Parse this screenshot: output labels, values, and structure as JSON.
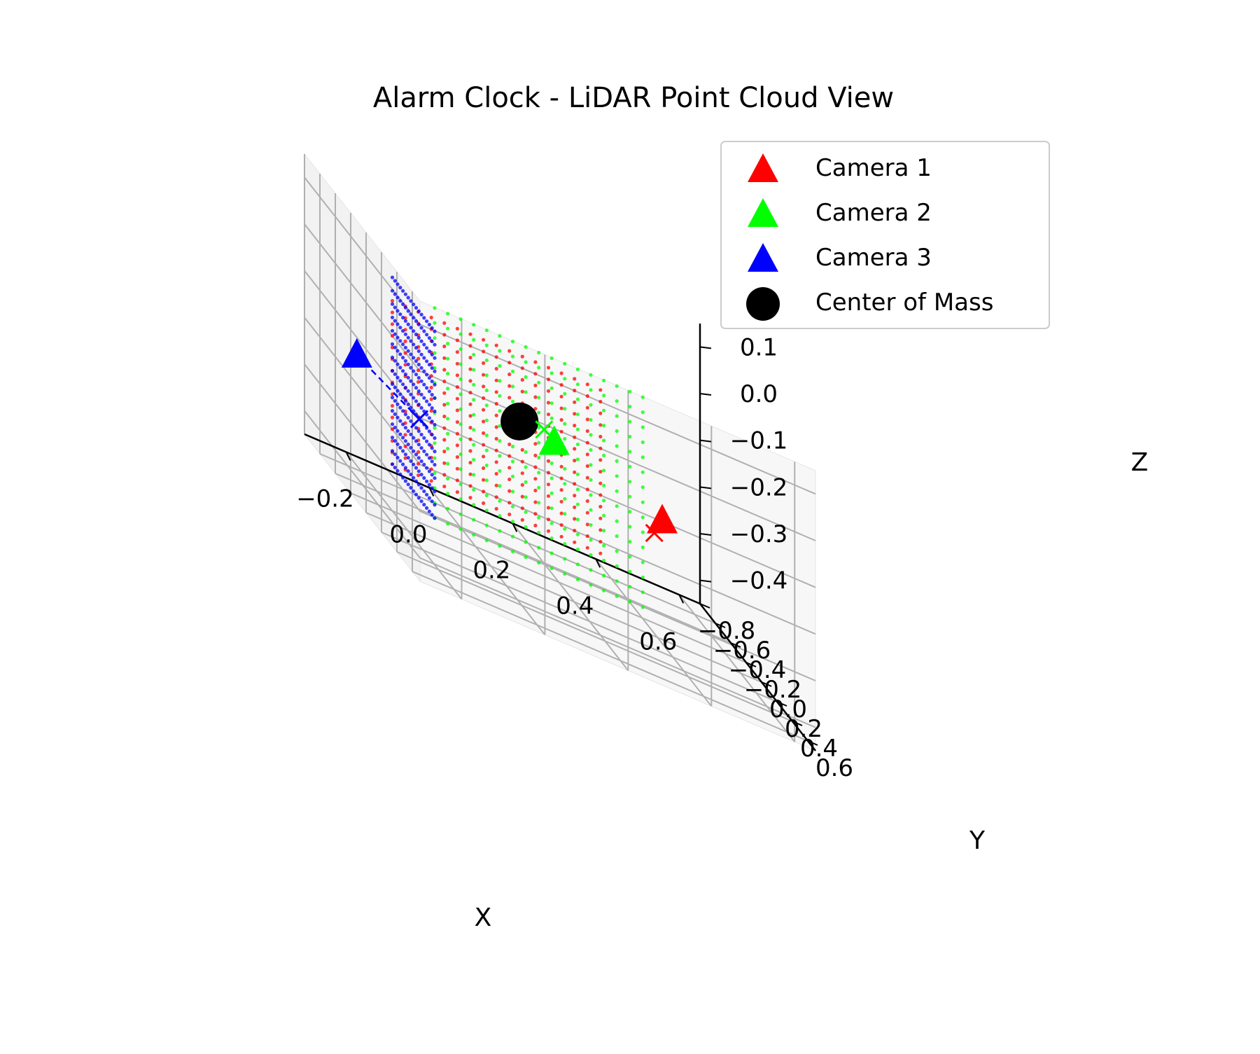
{
  "chart_data": {
    "type": "scatter",
    "title": "Alarm Clock - LiDAR Point Cloud View",
    "xlabel": "X",
    "ylabel": "Y",
    "zlabel": "Z",
    "xlim": [
      -0.3,
      0.65
    ],
    "ylim": [
      -0.8,
      0.7
    ],
    "zlim": [
      -0.45,
      0.15
    ],
    "x_ticks": [
      "−0.2",
      "0.0",
      "0.2",
      "0.4",
      "0.6"
    ],
    "y_ticks": [
      "−0.8",
      "−0.6",
      "−0.4",
      "−0.2",
      "0.0",
      "0.2",
      "0.4",
      "0.6"
    ],
    "z_ticks": [
      "−0.4",
      "−0.3",
      "−0.2",
      "−0.1",
      "0.0",
      "0.1"
    ],
    "grid": true,
    "legend_position": "top-right",
    "legend": [
      {
        "label": "Camera 1",
        "marker": "triangle",
        "color": "#ff0000"
      },
      {
        "label": "Camera 2",
        "marker": "triangle",
        "color": "#00ff00"
      },
      {
        "label": "Camera 3",
        "marker": "triangle",
        "color": "#0000ff"
      },
      {
        "label": "Center of Mass",
        "marker": "circle",
        "color": "#000000"
      }
    ],
    "center_of_mass": {
      "x": 0.05,
      "y": 0.1,
      "z": -0.1
    },
    "cameras": [
      {
        "name": "Camera 1",
        "color": "#ff0000",
        "x": 0.55,
        "y": -0.75,
        "z": -0.3,
        "target": {
          "x": 0.42,
          "y": -0.15,
          "z": -0.25
        }
      },
      {
        "name": "Camera 2",
        "color": "#00ff00",
        "x": 0.05,
        "y": 0.55,
        "z": -0.05,
        "target": {
          "x": 0.05,
          "y": 0.42,
          "z": -0.05
        }
      },
      {
        "name": "Camera 3",
        "color": "#0000ff",
        "x": -0.35,
        "y": 0.15,
        "z": -0.1,
        "target": {
          "x": -0.2,
          "y": 0.15,
          "z": -0.18
        }
      }
    ],
    "point_clouds": [
      {
        "camera": "Camera 1",
        "color": "#ff0000",
        "face": "y",
        "y": -0.2,
        "x_range": [
          -0.2,
          0.3
        ],
        "z_range": [
          -0.35,
          0.0
        ]
      },
      {
        "camera": "Camera 2",
        "color": "#00ff00",
        "face": "y",
        "y": 0.35,
        "x_range": [
          -0.2,
          0.3
        ],
        "z_range": [
          -0.35,
          0.1
        ]
      },
      {
        "camera": "Camera 3",
        "color": "#0000ff",
        "face": "x",
        "x": -0.2,
        "y_range": [
          -0.2,
          0.35
        ],
        "z_range": [
          -0.35,
          0.05
        ]
      }
    ]
  }
}
